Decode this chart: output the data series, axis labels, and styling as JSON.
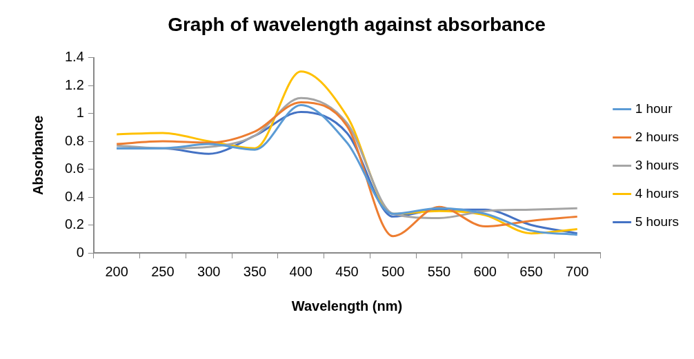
{
  "chart_data": {
    "type": "line",
    "title": "Graph of wavelength against absorbance",
    "xlabel": "Wavelength (nm)",
    "ylabel": "Absorbance",
    "categories": [
      "200",
      "250",
      "300",
      "350",
      "400",
      "450",
      "500",
      "550",
      "600",
      "650",
      "700"
    ],
    "series": [
      {
        "name": "1 hour",
        "color": "#5b9bd5",
        "values": [
          0.75,
          0.75,
          0.78,
          0.74,
          1.06,
          0.79,
          0.28,
          0.32,
          0.28,
          0.16,
          0.13
        ]
      },
      {
        "name": "2 hours",
        "color": "#ed7d31",
        "values": [
          0.78,
          0.8,
          0.79,
          0.87,
          1.08,
          0.91,
          0.12,
          0.33,
          0.19,
          0.23,
          0.26
        ]
      },
      {
        "name": "3 hours",
        "color": "#a5a5a5",
        "values": [
          0.77,
          0.75,
          0.76,
          0.84,
          1.11,
          0.93,
          0.28,
          0.25,
          0.3,
          0.31,
          0.32
        ]
      },
      {
        "name": "4 hours",
        "color": "#ffc000",
        "values": [
          0.85,
          0.86,
          0.8,
          0.75,
          1.3,
          0.98,
          0.28,
          0.3,
          0.27,
          0.14,
          0.17
        ]
      },
      {
        "name": "5 hours",
        "color": "#4472c4",
        "values": [
          0.75,
          0.75,
          0.71,
          0.84,
          1.01,
          0.86,
          0.26,
          0.31,
          0.31,
          0.2,
          0.14
        ]
      }
    ],
    "ylim": [
      0,
      1.4
    ],
    "yticks": [
      0,
      0.2,
      0.4,
      0.6,
      0.8,
      1,
      1.2,
      1.4
    ],
    "grid": false,
    "legend": "right",
    "line_style": "solid",
    "marker": "none"
  }
}
